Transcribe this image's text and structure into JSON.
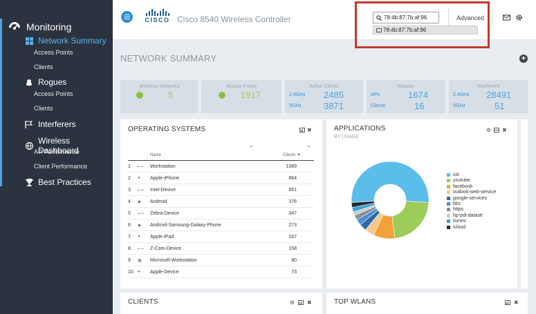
{
  "sidebar": {
    "title": "Monitoring",
    "sections": [
      {
        "label": "Network Summary",
        "icon": "grid-icon",
        "active": true,
        "subs": [
          "Access Points",
          "Clients"
        ]
      },
      {
        "label": "Rogues",
        "icon": "rogue-icon",
        "active": false,
        "subs": [
          "Access Points",
          "Clients"
        ]
      },
      {
        "label": "Interferers",
        "icon": "flag-icon",
        "active": false,
        "subs": []
      },
      {
        "label": "Wireless Dashboard",
        "icon": "globe-icon",
        "active": false,
        "subs": [
          "AP Performance",
          "Client Performance"
        ]
      },
      {
        "label": "Best Practices",
        "icon": "trophy-icon",
        "active": false,
        "subs": []
      }
    ]
  },
  "header": {
    "logo_text": "CISCO",
    "product": "Cisco 8540 Wireless Controller",
    "search_value": "78:4b:87:7b:af:96",
    "suggestion": "78:4b:87:7b:af:96",
    "advanced": "Advanced"
  },
  "page": {
    "title": "NETWORK SUMMARY"
  },
  "tiles": {
    "wireless_networks": {
      "title": "Wireless Networks",
      "value": "5"
    },
    "access_points": {
      "title": "Access Points",
      "value": "1917"
    },
    "active_clients": {
      "title": "Active Clients",
      "label1": "2.4GHz",
      "value1": "2485",
      "label2": "5GHz",
      "value2": "3871"
    },
    "rogues": {
      "title": "Rogues",
      "label1": "APs",
      "value1": "1674",
      "label2": "Clients",
      "value2": "16"
    },
    "interferers": {
      "title": "Interferers",
      "label1": "2.4GHz",
      "value1": "28491",
      "label2": "5GHz",
      "value2": "51"
    }
  },
  "os_panel": {
    "title": "OPERATING SYSTEMS",
    "col_name": "Name",
    "col_clients": "Clients ▼",
    "rows": [
      {
        "n": "1",
        "icon": "arrows-icon",
        "name": "Workstation",
        "clients": "1089"
      },
      {
        "n": "2",
        "icon": "apple-icon",
        "name": "Apple-iPhone",
        "clients": "864"
      },
      {
        "n": "3",
        "icon": "arrows-icon",
        "name": "Intel-Device",
        "clients": "851"
      },
      {
        "n": "4",
        "icon": "android-icon",
        "name": "Android",
        "clients": "376"
      },
      {
        "n": "5",
        "icon": "arrows-icon",
        "name": "Zebra-Device",
        "clients": "347"
      },
      {
        "n": "6",
        "icon": "android-icon",
        "name": "Android-Samsung-Galaxy-Phone",
        "clients": "273"
      },
      {
        "n": "7",
        "icon": "apple-icon",
        "name": "Apple-iPad",
        "clients": "167"
      },
      {
        "n": "8",
        "icon": "arrows-icon",
        "name": "Z-Com-Device",
        "clients": "158"
      },
      {
        "n": "9",
        "icon": "windows-icon",
        "name": "Microsoft-Workstation",
        "clients": "80"
      },
      {
        "n": "10",
        "icon": "apple-icon",
        "name": "Apple-Device",
        "clients": "73"
      }
    ]
  },
  "applications_panel": {
    "title": "APPLICATIONS",
    "subtitle": "BY USAGE"
  },
  "clients_panel": {
    "title": "CLIENTS"
  },
  "top_wlans_panel": {
    "title": "TOP WLANS"
  },
  "chart_data": {
    "type": "pie",
    "title": "APPLICATIONS",
    "subtitle": "BY USAGE",
    "donut": true,
    "legend_position": "right",
    "slices": [
      {
        "label": "ssl",
        "value": 52,
        "color": "#5bbdea"
      },
      {
        "label": "youtube",
        "value": 22,
        "color": "#9ccc5a"
      },
      {
        "label": "facebook",
        "value": 9,
        "color": "#f2a23a"
      },
      {
        "label": "outlook-web-service",
        "value": 4,
        "color": "#f6c98a"
      },
      {
        "label": "google-services",
        "value": 3,
        "color": "#2d6aa8"
      },
      {
        "label": "bbc",
        "value": 2.5,
        "color": "#4e8ed1"
      },
      {
        "label": "https",
        "value": 2,
        "color": "#8a8f96"
      },
      {
        "label": "hp-pdi-datastr",
        "value": 1.5,
        "color": "#c8ccd0"
      },
      {
        "label": "itunes",
        "value": 2,
        "color": "#3aa0d8"
      },
      {
        "label": "icloud",
        "value": 2,
        "color": "#222a33"
      }
    ]
  }
}
